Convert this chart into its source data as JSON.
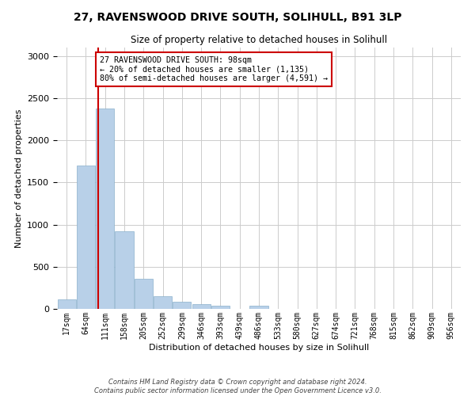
{
  "title_line1": "27, RAVENSWOOD DRIVE SOUTH, SOLIHULL, B91 3LP",
  "title_line2": "Size of property relative to detached houses in Solihull",
  "xlabel": "Distribution of detached houses by size in Solihull",
  "ylabel": "Number of detached properties",
  "footer_line1": "Contains HM Land Registry data © Crown copyright and database right 2024.",
  "footer_line2": "Contains public sector information licensed under the Open Government Licence v3.0.",
  "annotation_line1": "27 RAVENSWOOD DRIVE SOUTH: 98sqm",
  "annotation_line2": "← 20% of detached houses are smaller (1,135)",
  "annotation_line3": "80% of semi-detached houses are larger (4,591) →",
  "bar_labels": [
    "17sqm",
    "64sqm",
    "111sqm",
    "158sqm",
    "205sqm",
    "252sqm",
    "299sqm",
    "346sqm",
    "393sqm",
    "439sqm",
    "486sqm",
    "533sqm",
    "580sqm",
    "627sqm",
    "674sqm",
    "721sqm",
    "768sqm",
    "815sqm",
    "862sqm",
    "909sqm",
    "956sqm"
  ],
  "bar_values": [
    115,
    1700,
    2380,
    920,
    360,
    155,
    85,
    60,
    35,
    0,
    35,
    0,
    0,
    0,
    0,
    0,
    0,
    0,
    0,
    0,
    0
  ],
  "bar_color": "#b8d0e8",
  "bar_edge_color": "#8ab0cc",
  "vline_x": 1.65,
  "ylim": [
    0,
    3100
  ],
  "yticks": [
    0,
    500,
    1000,
    1500,
    2000,
    2500,
    3000
  ],
  "grid_color": "#cccccc",
  "annotation_box_color": "#cc0000",
  "vline_color": "#cc0000",
  "bg_color": "#ffffff",
  "plot_bg_color": "#ffffff"
}
